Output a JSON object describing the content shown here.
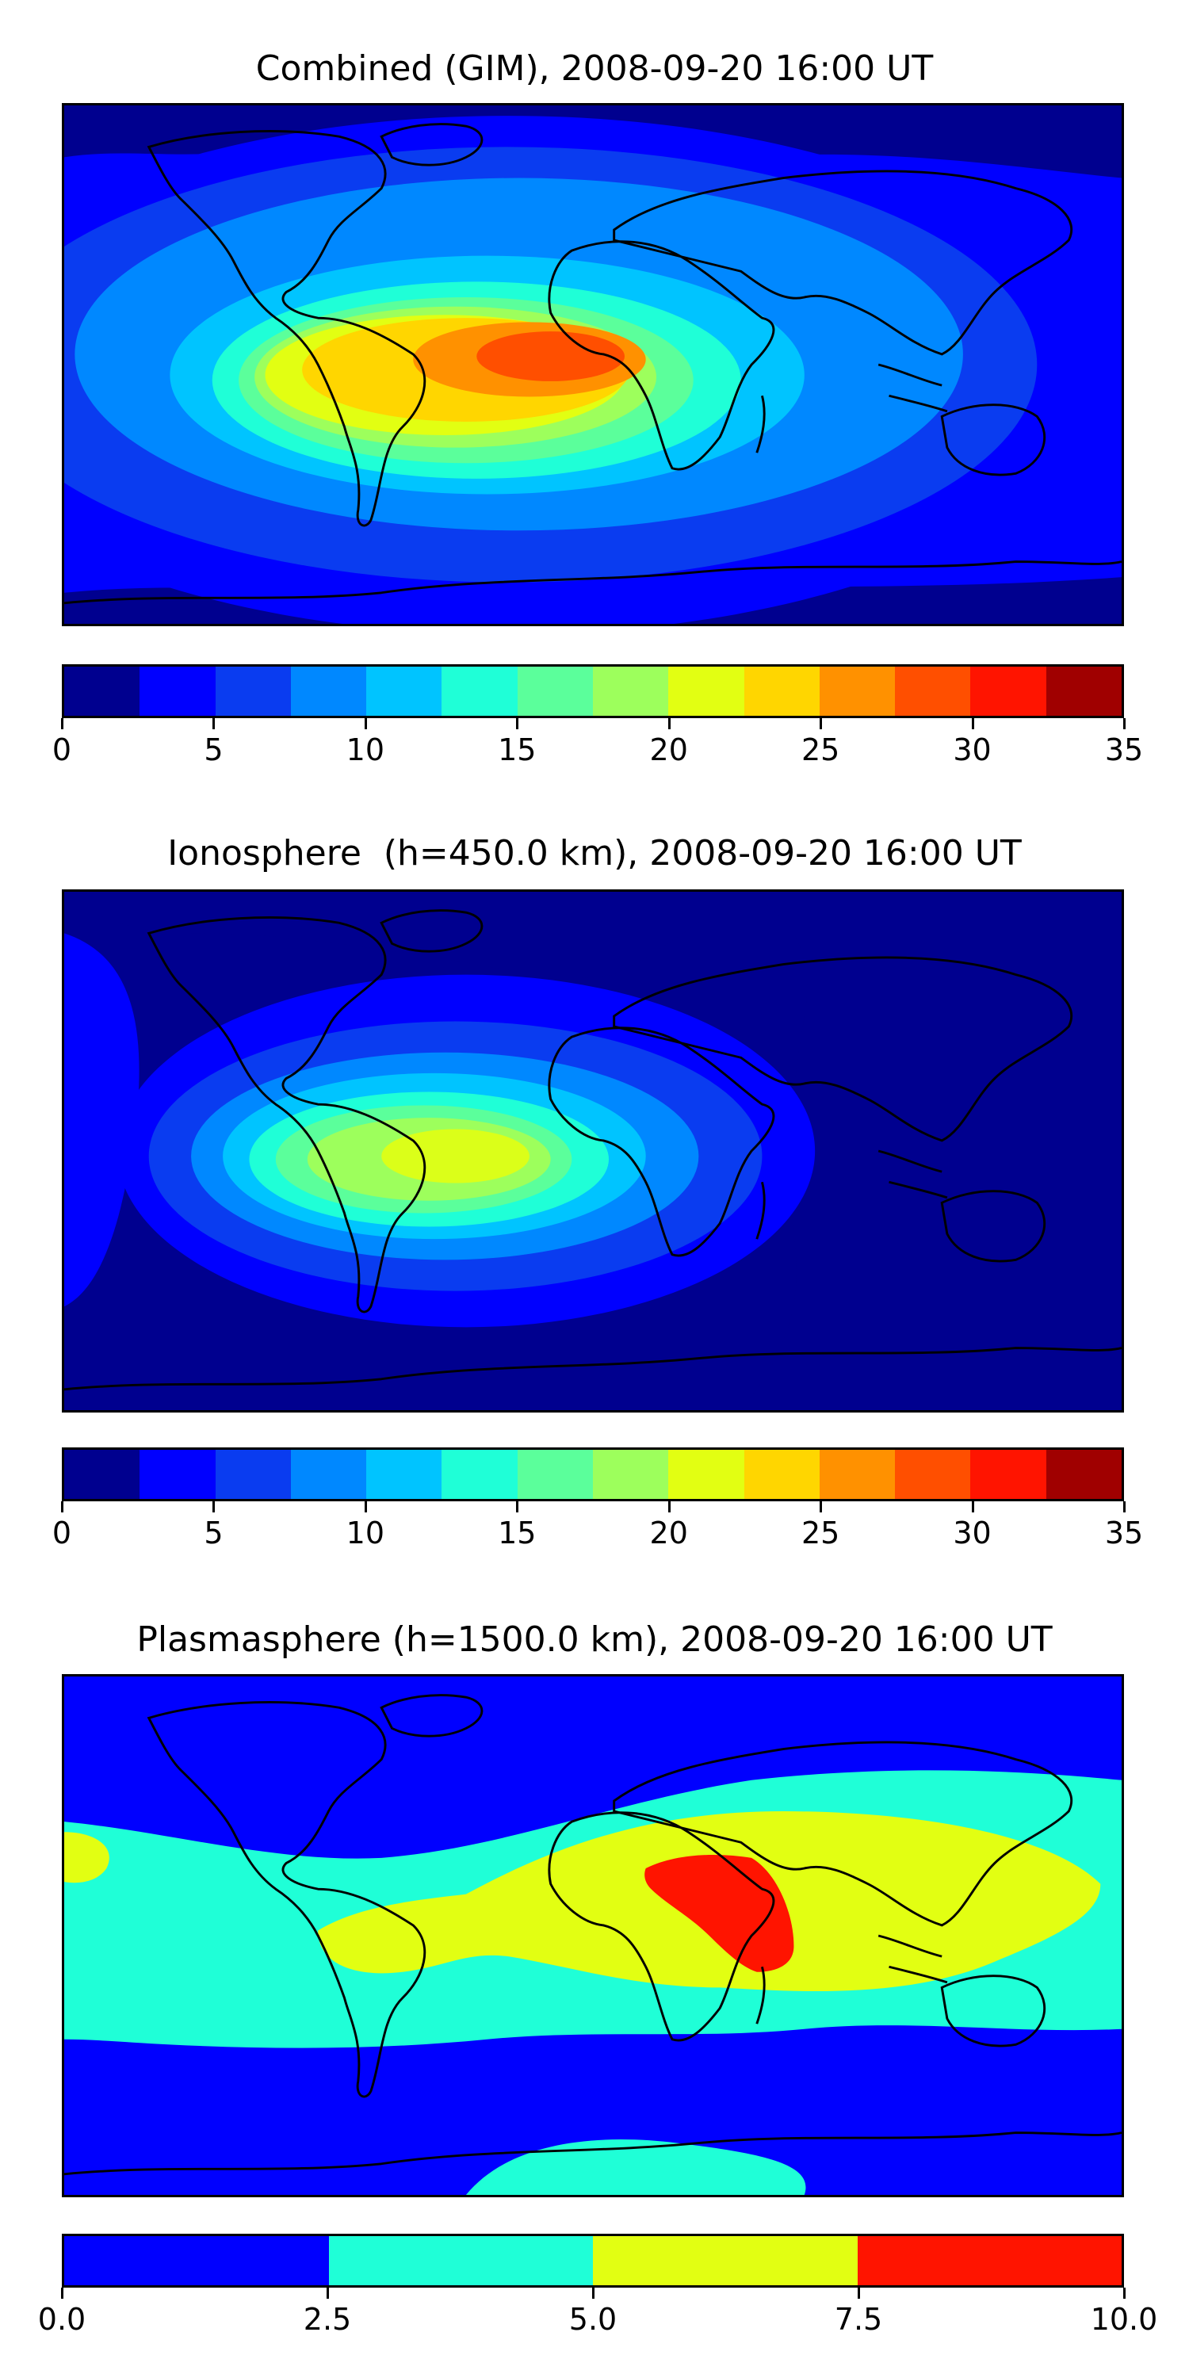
{
  "panels": [
    {
      "title": "Combined (GIM), 2008-09-20 16:00 UT",
      "colorbar_ticks": [
        "0",
        "5",
        "10",
        "15",
        "20",
        "25",
        "30",
        "35"
      ],
      "colors": [
        "#00008f",
        "#0000ff",
        "#0a3cf0",
        "#0088ff",
        "#00c4ff",
        "#1fffd7",
        "#5bff9b",
        "#9dff5c",
        "#e2ff12",
        "#ffd600",
        "#ff9100",
        "#ff4f00",
        "#ff1400",
        "#a00000"
      ]
    },
    {
      "title": "Ionosphere  (h=450.0 km), 2008-09-20 16:00 UT",
      "colorbar_ticks": [
        "0",
        "5",
        "10",
        "15",
        "20",
        "25",
        "30",
        "35"
      ],
      "colors": [
        "#00008f",
        "#0000ff",
        "#0a3cf0",
        "#0088ff",
        "#00c4ff",
        "#1fffd7",
        "#5bff9b",
        "#9dff5c",
        "#e2ff12",
        "#ffd600",
        "#ff9100",
        "#ff4f00",
        "#ff1400",
        "#a00000"
      ]
    },
    {
      "title": "Plasmasphere (h=1500.0 km), 2008-09-20 16:00 UT",
      "colorbar_ticks": [
        "0.0",
        "2.5",
        "5.0",
        "7.5",
        "10.0"
      ],
      "colors": [
        "#0000ff",
        "#1fffd7",
        "#e2ff12",
        "#ff1400"
      ]
    }
  ]
}
